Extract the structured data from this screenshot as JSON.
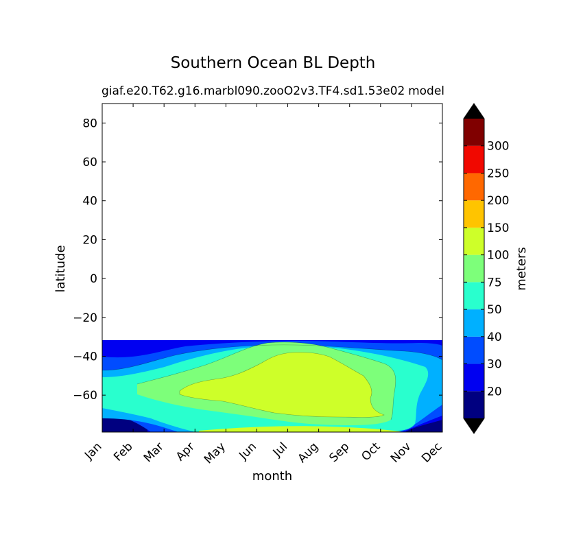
{
  "chart_data": {
    "type": "contourf",
    "title": "Southern Ocean BL Depth",
    "subtitle_left": "giaf.e20.T62.g16.marbl090.zooO2v3.TF4.sd1.53e02",
    "subtitle_right": "model",
    "xlabel": "month",
    "ylabel": "latitude",
    "colorbar_label": "meters",
    "x_categories": [
      "Jan",
      "Feb",
      "Mar",
      "Apr",
      "May",
      "Jun",
      "Jul",
      "Aug",
      "Sep",
      "Oct",
      "Nov",
      "Dec"
    ],
    "ylim": [
      -79,
      90
    ],
    "yticks": [
      80,
      60,
      40,
      20,
      0,
      -20,
      -40,
      -60
    ],
    "ytick_labels": [
      "80",
      "60",
      "40",
      "20",
      "0",
      "−20",
      "−40",
      "−60"
    ],
    "data_lat_range": [
      -79,
      -31
    ],
    "levels": [
      10,
      20,
      30,
      40,
      50,
      75,
      100,
      150,
      200,
      250,
      300,
      350
    ],
    "colorbar_tick_labels": [
      "20",
      "30",
      "40",
      "50",
      "75",
      "100",
      "150",
      "200",
      "250",
      "300"
    ],
    "level_colors": [
      "#000080",
      "#0000f1",
      "#004cff",
      "#00b0ff",
      "#29ffce",
      "#7dff7a",
      "#ceff29",
      "#ffc400",
      "#ff6800",
      "#f10800",
      "#800000"
    ],
    "extend_colors": {
      "under": "#000000",
      "over": "#000000"
    },
    "field_peak": {
      "value": 100,
      "month": "Jul",
      "latitude": -57
    },
    "regions": [
      {
        "level": "10-20",
        "months": [
          "Jan",
          "Feb"
        ],
        "latitude": [
          -79,
          -70
        ]
      },
      {
        "level": "20-30",
        "months": [
          "Jan",
          "Dec"
        ],
        "latitude": [
          -79,
          -31
        ]
      },
      {
        "level": "30-40",
        "months": [
          "Jan",
          "Dec"
        ],
        "latitude": [
          -78,
          -33
        ]
      },
      {
        "level": "40-50",
        "months": [
          "Jan",
          "Dec"
        ],
        "latitude": [
          -77,
          -37
        ]
      },
      {
        "level": "50-75",
        "months": [
          "Feb",
          "Nov"
        ],
        "latitude": [
          -77,
          -39
        ]
      },
      {
        "level": "75-100",
        "months": [
          "Apr",
          "Oct"
        ],
        "latitude": [
          -74,
          -42
        ]
      },
      {
        "level": "100-150",
        "months": [
          "May",
          "Sep"
        ],
        "latitude": [
          -71,
          -47
        ]
      }
    ]
  }
}
